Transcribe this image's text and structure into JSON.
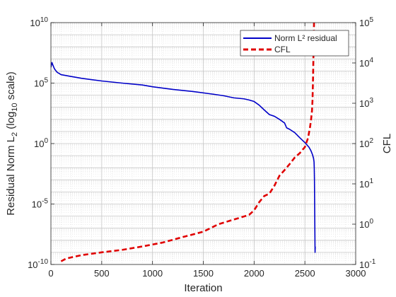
{
  "chart_data": {
    "type": "line",
    "xlabel": "Iteration",
    "ylabel_left": "Residual Norm L",
    "ylabel_left_sub": "2",
    "ylabel_left_paren": "(log",
    "ylabel_left_paren_sub": "10",
    "ylabel_left_paren_tail": " scale)",
    "ylabel_right": "CFL",
    "xlim": [
      0,
      3000
    ],
    "ylim_left": [
      1e-10,
      10000000000.0
    ],
    "ylim_right": [
      0.1,
      100000
    ],
    "left_scale": "log",
    "right_scale": "log",
    "grid": true,
    "minor_grid": true,
    "legend_position": "top-right",
    "x_ticks": [
      "0",
      "500",
      "1000",
      "1500",
      "2000",
      "2500",
      "3000"
    ],
    "left_ticks": [
      {
        "base": "10",
        "exp": "-10"
      },
      {
        "base": "10",
        "exp": "-5"
      },
      {
        "base": "10",
        "exp": "0"
      },
      {
        "base": "10",
        "exp": "5"
      },
      {
        "base": "10",
        "exp": "10"
      }
    ],
    "right_ticks": [
      {
        "base": "10",
        "exp": "-1"
      },
      {
        "base": "10",
        "exp": "0"
      },
      {
        "base": "10",
        "exp": "1"
      },
      {
        "base": "10",
        "exp": "2"
      },
      {
        "base": "10",
        "exp": "3"
      },
      {
        "base": "10",
        "exp": "4"
      },
      {
        "base": "10",
        "exp": "5"
      }
    ],
    "series": [
      {
        "name": "Norm L² residual",
        "axis": "left",
        "color": "#0000c8",
        "style": "solid",
        "x": [
          0,
          10,
          20,
          35,
          60,
          100,
          200,
          300,
          500,
          700,
          900,
          1000,
          1200,
          1400,
          1600,
          1700,
          1800,
          1900,
          1950,
          2000,
          2050,
          2100,
          2150,
          2200,
          2250,
          2300,
          2320,
          2350,
          2400,
          2450,
          2500,
          2540,
          2560,
          2575,
          2585,
          2590,
          2592,
          2594,
          2596,
          2598,
          2600,
          2602
        ],
        "y": [
          2000000.0,
          5000000.0,
          3000000.0,
          1500000.0,
          800000.0,
          500000.0,
          350000.0,
          250000.0,
          150000.0,
          100000.0,
          70000.0,
          50000.0,
          30000.0,
          20000.0,
          12000.0,
          9000.0,
          6000.0,
          5000.0,
          4000.0,
          3000.0,
          1500.0,
          600,
          250,
          180,
          100,
          50,
          20,
          15,
          8,
          3,
          1.2,
          0.5,
          0.25,
          0.12,
          0.06,
          0.03,
          0.01,
          0.001,
          1e-05,
          1e-07,
          1e-09,
          3e-09
        ]
      },
      {
        "name": "CFL",
        "axis": "right",
        "color": "#e00000",
        "style": "dashed",
        "x": [
          100,
          150,
          200,
          300,
          500,
          700,
          900,
          1100,
          1300,
          1500,
          1650,
          1800,
          1950,
          2000,
          2050,
          2100,
          2150,
          2200,
          2250,
          2300,
          2350,
          2400,
          2450,
          2500,
          2530,
          2550,
          2560,
          2570,
          2575,
          2580,
          2585,
          2590
        ],
        "y": [
          0.12,
          0.14,
          0.15,
          0.17,
          0.2,
          0.23,
          0.28,
          0.35,
          0.48,
          0.65,
          1,
          1.3,
          1.7,
          2.2,
          3.5,
          5,
          5.7,
          9,
          16,
          22,
          31,
          45,
          58,
          82,
          135,
          250,
          380,
          650,
          1200,
          4000,
          20000,
          100000
        ]
      }
    ]
  }
}
